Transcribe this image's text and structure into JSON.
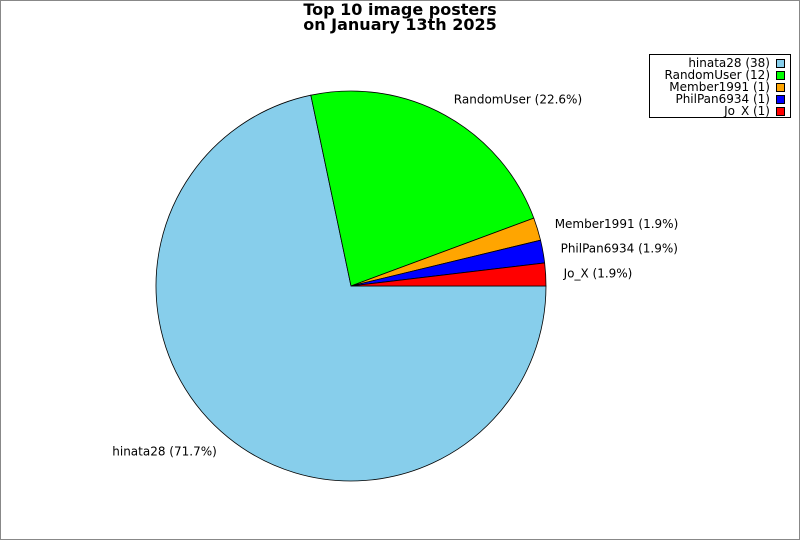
{
  "chart_data": {
    "type": "pie",
    "title": [
      "Top 10 image posters",
      "on January 13th 2025"
    ],
    "slices": [
      {
        "label": "hinata28",
        "value": 38,
        "percent_label": "hinata28 (71.7%)",
        "legend": "hinata28 (38)",
        "color": "#87ceeb"
      },
      {
        "label": "RandomUser",
        "value": 12,
        "percent_label": "RandomUser (22.6%)",
        "legend": "RandomUser (12)",
        "color": "#00ff00"
      },
      {
        "label": "Member1991",
        "value": 1,
        "percent_label": "Member1991 (1.9%)",
        "legend": "Member1991 (1)",
        "color": "#ffa500"
      },
      {
        "label": "PhilPan6934",
        "value": 1,
        "percent_label": "PhilPan6934 (1.9%)",
        "legend": "PhilPan6934 (1)",
        "color": "#0000ff"
      },
      {
        "label": "Jo_X",
        "value": 1,
        "percent_label": "Jo_X (1.9%)",
        "legend": "Jo_X (1)",
        "color": "#ff0000"
      }
    ],
    "legend_position": "top-right"
  }
}
